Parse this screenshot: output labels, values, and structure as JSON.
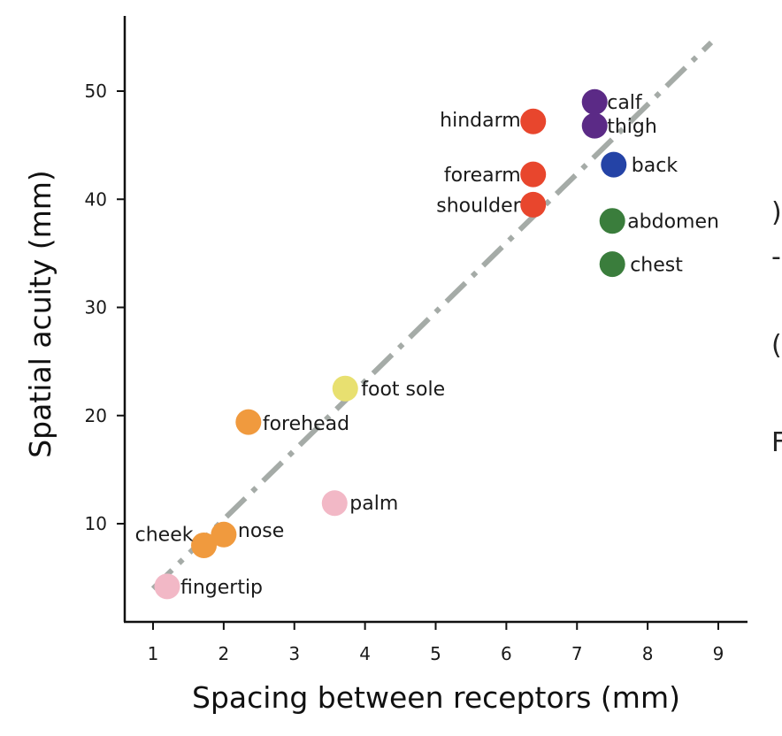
{
  "chart_data": {
    "type": "scatter",
    "xlabel": "Spacing between receptors (mm)",
    "ylabel": "Spatial acuity (mm)",
    "xlim": [
      0.6,
      9.4
    ],
    "ylim": [
      1.5,
      57
    ],
    "xticks": [
      "1",
      "2",
      "3",
      "4",
      "5",
      "6",
      "7",
      "8",
      "9"
    ],
    "yticks": [
      "10",
      "20",
      "30",
      "40",
      "50"
    ],
    "grid": false,
    "legend": "none",
    "fit_line": {
      "x": [
        1.0,
        8.9
      ],
      "y": [
        4.0,
        54.5
      ],
      "color": "#a5aba7"
    },
    "points": [
      {
        "label": "calf",
        "x": 7.25,
        "y": 49.0,
        "color": "#5b2a86"
      },
      {
        "label": "thigh",
        "x": 7.25,
        "y": 46.8,
        "color": "#5b2a86"
      },
      {
        "label": "hindarm",
        "x": 6.38,
        "y": 47.2,
        "color": "#e8462d"
      },
      {
        "label": "back",
        "x": 7.52,
        "y": 43.2,
        "color": "#2443a6"
      },
      {
        "label": "forearm",
        "x": 6.38,
        "y": 42.3,
        "color": "#e8462d"
      },
      {
        "label": "shoulder",
        "x": 6.38,
        "y": 39.5,
        "color": "#e8462d"
      },
      {
        "label": "abdomen",
        "x": 7.5,
        "y": 38.0,
        "color": "#3a7d3c"
      },
      {
        "label": "chest",
        "x": 7.5,
        "y": 34.0,
        "color": "#3a7d3c"
      },
      {
        "label": "foot sole",
        "x": 3.72,
        "y": 22.5,
        "color": "#e8e070"
      },
      {
        "label": "forehead",
        "x": 2.35,
        "y": 19.4,
        "color": "#f09a3e"
      },
      {
        "label": "palm",
        "x": 3.57,
        "y": 11.9,
        "color": "#f2b8c6"
      },
      {
        "label": "nose",
        "x": 2.0,
        "y": 9.0,
        "color": "#f09a3e"
      },
      {
        "label": "cheek",
        "x": 1.72,
        "y": 8.0,
        "color": "#f09a3e"
      },
      {
        "label": "fingertip",
        "x": 1.2,
        "y": 4.2,
        "color": "#f2b8c6"
      }
    ]
  }
}
